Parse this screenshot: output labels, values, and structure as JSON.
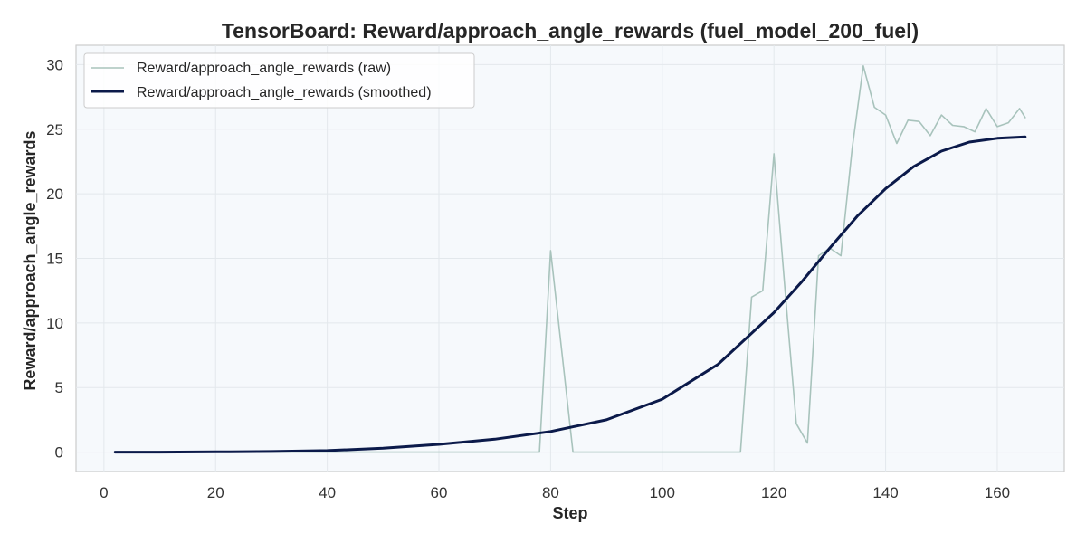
{
  "chart_data": {
    "type": "line",
    "title": "TensorBoard: Reward/approach_angle_rewards (fuel_model_200_fuel)",
    "xlabel": "Step",
    "ylabel": "Reward/approach_angle_rewards",
    "xlim": [
      -5,
      172
    ],
    "ylim": [
      -1.5,
      31.5
    ],
    "xticks": [
      0,
      20,
      40,
      60,
      80,
      100,
      120,
      140,
      160
    ],
    "yticks": [
      0,
      5,
      10,
      15,
      20,
      25,
      30
    ],
    "grid": true,
    "legend_position": "top-left",
    "series": [
      {
        "name": "Reward/approach_angle_rewards (raw)",
        "color": "#a8c3bc",
        "x": [
          2,
          78,
          80,
          84,
          114,
          116,
          118,
          120,
          122,
          124,
          126,
          128,
          130,
          132,
          134,
          136,
          138,
          140,
          142,
          144,
          146,
          148,
          150,
          152,
          154,
          156,
          158,
          160,
          162,
          164,
          165
        ],
        "y": [
          0,
          0,
          15.6,
          0,
          0,
          12.0,
          12.5,
          23.1,
          12.5,
          2.2,
          0.7,
          15.2,
          15.8,
          15.2,
          23.5,
          29.9,
          26.7,
          26.1,
          23.9,
          25.7,
          25.6,
          24.5,
          26.1,
          25.3,
          25.2,
          24.8,
          26.6,
          25.2,
          25.5,
          26.6,
          25.9
        ]
      },
      {
        "name": "Reward/approach_angle_rewards (smoothed)",
        "color": "#0b1a4a",
        "x": [
          2,
          10,
          20,
          30,
          40,
          50,
          60,
          70,
          80,
          90,
          100,
          110,
          120,
          125,
          130,
          135,
          140,
          145,
          150,
          155,
          160,
          165
        ],
        "y": [
          0,
          0,
          0.02,
          0.05,
          0.12,
          0.3,
          0.6,
          1.0,
          1.6,
          2.5,
          4.1,
          6.8,
          10.8,
          13.2,
          15.8,
          18.3,
          20.4,
          22.1,
          23.3,
          24.0,
          24.3,
          24.4
        ]
      }
    ]
  }
}
